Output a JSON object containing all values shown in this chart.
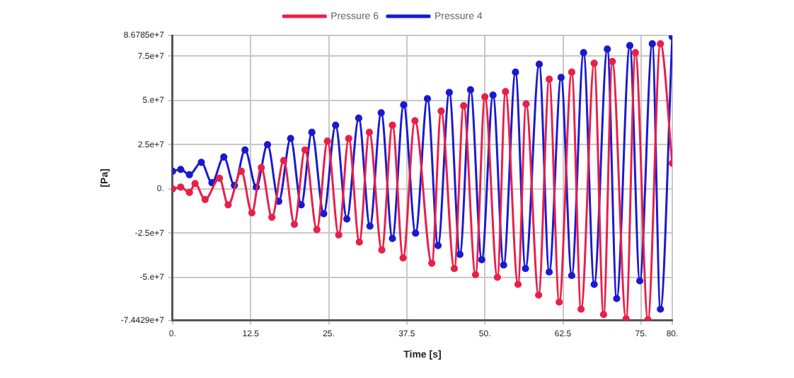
{
  "chart_data": {
    "type": "line",
    "xlabel": "Time [s]",
    "ylabel": "[Pa]",
    "xlim": [
      0,
      80
    ],
    "xticks": [
      {
        "value": 0,
        "label": "0."
      },
      12.5,
      {
        "value": 25,
        "label": "25."
      },
      37.5,
      {
        "value": 50,
        "label": "50."
      },
      62.5,
      {
        "value": 75,
        "label": "75."
      },
      {
        "value": 80,
        "label": "80."
      }
    ],
    "ylim": [
      -74429000,
      86785000
    ],
    "yticks": [
      {
        "value": -74429000,
        "label": "-7.4429e+7"
      },
      {
        "value": -50000000,
        "label": "-5.e+7"
      },
      {
        "value": -25000000,
        "label": "-2.5e+7"
      },
      {
        "value": 0,
        "label": "0."
      },
      {
        "value": 25000000,
        "label": "2.5e+7"
      },
      {
        "value": 50000000,
        "label": "5.e+7"
      },
      {
        "value": 75000000,
        "label": "7.5e+7"
      },
      {
        "value": 86785000,
        "label": "8.6785e+7"
      }
    ],
    "grid": true,
    "legend": "top",
    "marker": "circle",
    "line_style": "solid",
    "series": [
      {
        "name": "Pressure 6",
        "color": "#e8204a",
        "x": [
          0,
          1.3,
          2.7,
          3.6,
          5.2,
          7.5,
          8.9,
          11.0,
          12.7,
          14.2,
          15.9,
          17.8,
          19.5,
          21.2,
          23.1,
          24.8,
          26.6,
          28.2,
          29.9,
          31.5,
          33.5,
          35.2,
          36.9,
          38.8,
          41.5,
          43.0,
          45.1,
          46.6,
          48.5,
          50.0,
          52.0,
          53.3,
          55.3,
          56.6,
          58.6,
          60.3,
          61.9,
          63.9,
          65.4,
          67.5,
          69.0,
          70.4,
          72.6,
          74.1,
          76.1,
          78.1,
          80
        ],
        "values": [
          0,
          1000000.0,
          -2000000.0,
          3000000.0,
          -6000000.0,
          6000000.0,
          -9000000.0,
          10000000.0,
          -13500000.0,
          12000000.0,
          -16000000.0,
          16000000.0,
          -20000000.0,
          22000000.0,
          -23000000.0,
          27000000.0,
          -26000000.0,
          28500000.0,
          -30000000.0,
          32000000.0,
          -34500000.0,
          36000000.0,
          -39000000.0,
          38500000.0,
          -42000000.0,
          44000000.0,
          -45000000.0,
          47000000.0,
          -48500000.0,
          52000000.0,
          -50000000.0,
          55000000.0,
          -54000000.0,
          48000000.0,
          -60000000.0,
          62000000.0,
          -64000000.0,
          66000000.0,
          -68000000.0,
          71000000.0,
          -71000000.0,
          72000000.0,
          -73500000.0,
          77000000.0,
          -74000000.0,
          82000000.0,
          14500000.0
        ]
      },
      {
        "name": "Pressure 4",
        "color": "#1a1ad0",
        "x": [
          0,
          1.3,
          2.7,
          4.6,
          6.3,
          8.2,
          9.9,
          11.6,
          13.4,
          15.2,
          17.0,
          18.9,
          20.6,
          22.3,
          24.2,
          26.1,
          27.9,
          29.8,
          31.6,
          33.4,
          35.2,
          37.0,
          38.9,
          40.8,
          42.5,
          44.3,
          46.0,
          47.7,
          49.5,
          51.3,
          53.0,
          54.9,
          56.5,
          58.7,
          60.3,
          62.2,
          63.9,
          65.8,
          67.5,
          69.6,
          71.1,
          73.2,
          74.8,
          76.8,
          78.1,
          80
        ],
        "values": [
          10000000.0,
          11000000.0,
          8000000.0,
          15000000.0,
          3500000.0,
          18000000.0,
          2000000.0,
          22000000.0,
          1000000.0,
          25000000.0,
          -7000000.0,
          28500000.0,
          -9000000.0,
          32000000.0,
          -14000000.0,
          36000000.0,
          -17000000.0,
          40000000.0,
          -21000000.0,
          43000000.0,
          -28000000.0,
          47500000.0,
          -25000000.0,
          51000000.0,
          -32000000.0,
          54500000.0,
          -37000000.0,
          56000000.0,
          -40000000.0,
          53000000.0,
          -43000000.0,
          66000000.0,
          -45000000.0,
          70500000.0,
          -47000000.0,
          63000000.0,
          -49000000.0,
          77000000.0,
          -54000000.0,
          79000000.0,
          -62000000.0,
          81000000.0,
          -52000000.0,
          82000000.0,
          -68000000.0,
          86000000.0
        ]
      }
    ]
  }
}
